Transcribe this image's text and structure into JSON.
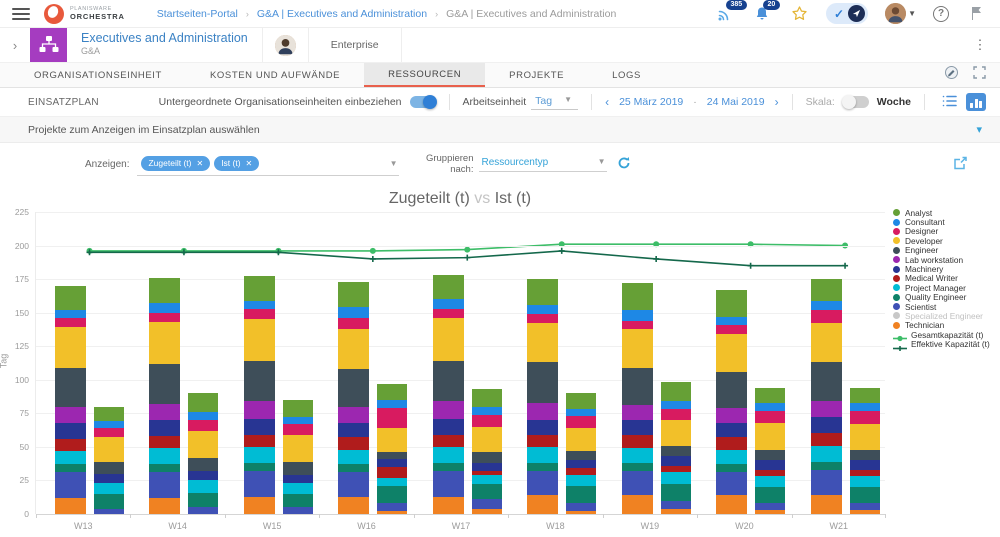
{
  "topbar": {
    "logo_line1": "PLANISWARE",
    "logo_line2": "ORCHESTRA",
    "breadcrumb": [
      {
        "label": "Startseiten-Portal"
      },
      {
        "label": "G&A | Executives and Administration"
      },
      {
        "label": "G&A | Executives and Administration"
      }
    ],
    "notifications_badge": "385",
    "alerts_badge": "20",
    "help_glyph": "?"
  },
  "header": {
    "title": "Executives and Administration",
    "subtitle": "G&A",
    "context_label": "Enterprise"
  },
  "tabs": [
    {
      "label": "ORGANISATIONSEINHEIT"
    },
    {
      "label": "KOSTEN UND AUFWÄNDE"
    },
    {
      "label": "RESSOURCEN"
    },
    {
      "label": "PROJEKTE"
    },
    {
      "label": "LOGS"
    }
  ],
  "toolbar": {
    "section_label": "EINSATZPLAN",
    "include_toggle_label": "Untergeordnete Organisationseinheiten einbeziehen",
    "work_unit_label": "Arbeitseinheit",
    "work_unit_value": "Tag",
    "date_from": "25 März 2019",
    "date_separator": "·",
    "date_to": "24 Mai 2019",
    "prev_glyph": "‹",
    "next_glyph": "›",
    "scale_label": "Skala:",
    "scale_value": "Woche"
  },
  "collapse_bar": {
    "label": "Projekte zum Anzeigen im Einsatzplan auswählen",
    "chevron": "▾"
  },
  "filters": {
    "show_label": "Anzeigen:",
    "chips": [
      {
        "label": "Zugeteilt (t)"
      },
      {
        "label": "Ist (t)"
      }
    ],
    "chip_remove_glyph": "✕",
    "group_by_label_1": "Gruppieren",
    "group_by_label_2": "nach:",
    "group_by_value": "Ressourcentyp"
  },
  "chart_data": {
    "type": "bar",
    "subtype": "stacked-bars-with-overlay-lines",
    "title_parts": {
      "left": "Zugeteilt (t)",
      "mid": "vs",
      "right": "Ist (t)"
    },
    "ylabel": "Tag",
    "ylim": [
      0,
      225
    ],
    "ytick_step": 25,
    "grid": true,
    "legend_position": "right",
    "categories": [
      "W13",
      "W14",
      "W15",
      "W16",
      "W17",
      "W18",
      "W19",
      "W20",
      "W21"
    ],
    "stack_keys": [
      "Technician",
      "Scientist",
      "Quality Engineer",
      "Project Manager",
      "Medical Writer",
      "Machinery",
      "Lab workstation",
      "Engineer",
      "Developer",
      "Designer",
      "Consultant",
      "Analyst"
    ],
    "stack_colors": [
      "#f08222",
      "#3f51b5",
      "#0e8168",
      "#00bcd4",
      "#b01c1c",
      "#283593",
      "#9c27b0",
      "#3e4e59",
      "#f2c029",
      "#d81b60",
      "#1e88e5",
      "#66a036"
    ],
    "series": [
      {
        "name": "Zugeteilt (t)",
        "stacks": [
          [
            12,
            19,
            6,
            10,
            9,
            12,
            12,
            29,
            30,
            7,
            6,
            18
          ],
          [
            12,
            19,
            6,
            12,
            9,
            12,
            12,
            30,
            31,
            7,
            7,
            19
          ],
          [
            13,
            19,
            6,
            12,
            9,
            12,
            13,
            30,
            31,
            8,
            6,
            18
          ],
          [
            13,
            18,
            6,
            11,
            9,
            11,
            12,
            28,
            30,
            8,
            8,
            19
          ],
          [
            13,
            19,
            6,
            12,
            9,
            12,
            13,
            30,
            32,
            7,
            7,
            18
          ],
          [
            14,
            18,
            6,
            12,
            9,
            11,
            13,
            30,
            29,
            7,
            7,
            19
          ],
          [
            14,
            18,
            6,
            11,
            10,
            11,
            11,
            28,
            29,
            6,
            8,
            20
          ],
          [
            14,
            17,
            6,
            11,
            9,
            11,
            11,
            27,
            28,
            7,
            6,
            20
          ],
          [
            14,
            19,
            6,
            12,
            9,
            12,
            12,
            29,
            29,
            10,
            7,
            16
          ]
        ]
      },
      {
        "name": "Ist (t)",
        "stacks": [
          [
            0,
            4,
            11,
            8,
            0,
            7,
            0,
            9,
            18,
            7,
            5,
            11
          ],
          [
            0,
            5,
            11,
            9,
            0,
            7,
            0,
            10,
            20,
            8,
            6,
            14
          ],
          [
            0,
            5,
            10,
            8,
            0,
            6,
            0,
            10,
            20,
            8,
            5,
            13
          ],
          [
            2,
            6,
            13,
            6,
            8,
            6,
            0,
            5,
            18,
            15,
            6,
            12
          ],
          [
            4,
            7,
            11,
            7,
            3,
            6,
            0,
            8,
            19,
            9,
            6,
            13
          ],
          [
            2,
            6,
            13,
            8,
            5,
            6,
            0,
            7,
            17,
            9,
            5,
            12
          ],
          [
            4,
            6,
            12,
            9,
            5,
            7,
            0,
            8,
            19,
            8,
            6,
            14
          ],
          [
            3,
            5,
            12,
            8,
            5,
            7,
            0,
            8,
            20,
            9,
            6,
            11
          ],
          [
            3,
            5,
            12,
            8,
            5,
            7,
            0,
            8,
            19,
            10,
            6,
            11
          ]
        ]
      }
    ],
    "lines": [
      {
        "name": "Gesamtkapazität (t)",
        "color": "#3dbd68",
        "marker": "circle",
        "values": [
          196,
          196,
          196,
          196,
          197,
          201,
          201,
          201,
          200
        ]
      },
      {
        "name": "Effektive Kapazität (t)",
        "color": "#14684b",
        "marker": "plus",
        "values": [
          195,
          195,
          195,
          190,
          191,
          196,
          190,
          185,
          185
        ]
      }
    ],
    "legend": [
      {
        "label": "Analyst",
        "color": "#66a036",
        "type": "dot"
      },
      {
        "label": "Consultant",
        "color": "#1e88e5",
        "type": "dot"
      },
      {
        "label": "Designer",
        "color": "#d81b60",
        "type": "dot"
      },
      {
        "label": "Developer",
        "color": "#f2c029",
        "type": "dot"
      },
      {
        "label": "Engineer",
        "color": "#3e4e59",
        "type": "dot"
      },
      {
        "label": "Lab workstation",
        "color": "#9c27b0",
        "type": "dot"
      },
      {
        "label": "Machinery",
        "color": "#283593",
        "type": "dot"
      },
      {
        "label": "Medical Writer",
        "color": "#b01c1c",
        "type": "dot"
      },
      {
        "label": "Project Manager",
        "color": "#00bcd4",
        "type": "dot"
      },
      {
        "label": "Quality Engineer",
        "color": "#0e8168",
        "type": "dot"
      },
      {
        "label": "Scientist",
        "color": "#3f51b5",
        "type": "dot"
      },
      {
        "label": "Specialized Engineer",
        "color": "#c8c8c8",
        "type": "dot",
        "disabled": true
      },
      {
        "label": "Technician",
        "color": "#f08222",
        "type": "dot"
      },
      {
        "label": "Gesamtkapazität (t)",
        "color": "#3dbd68",
        "type": "line-circle"
      },
      {
        "label": "Effektive Kapazität (t)",
        "color": "#14684b",
        "type": "line-plus"
      }
    ]
  }
}
